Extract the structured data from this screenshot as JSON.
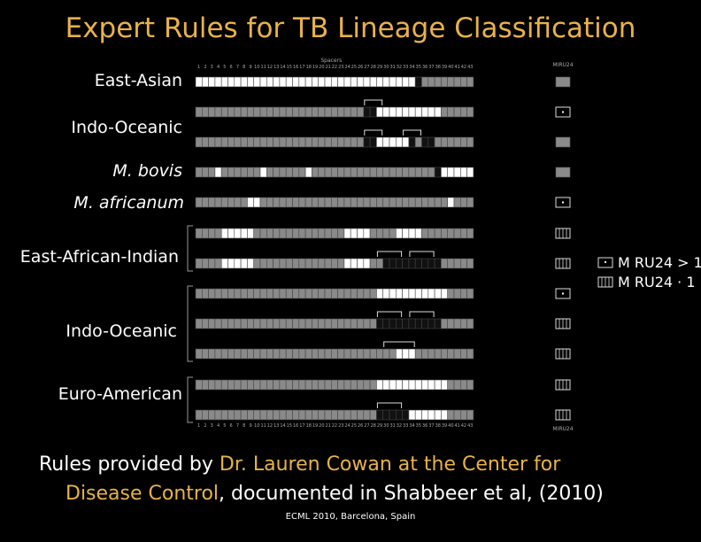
{
  "title": "Expert Rules for TB Lineage Classification",
  "labels": {
    "east_asian": "East-Asian",
    "indo_oceanic_1": "Indo-Oceanic",
    "m_bovis": "M. bovis",
    "m_africanum": "M. africanum",
    "east_african_indian": "East-African-Indian",
    "indo_oceanic_2": "Indo-Oceanic",
    "euro_american": "Euro-American"
  },
  "diagram": {
    "spacers_label": "Spacers",
    "miru_label": "MIRU24",
    "spacer_numbers": [
      "1",
      "2",
      "3",
      "4",
      "5",
      "6",
      "7",
      "8",
      "9",
      "10",
      "11",
      "12",
      "13",
      "14",
      "15",
      "16",
      "17",
      "18",
      "19",
      "20",
      "21",
      "22",
      "23",
      "24",
      "25",
      "26",
      "27",
      "28",
      "29",
      "30",
      "31",
      "32",
      "33",
      "34",
      "35",
      "36",
      "37",
      "38",
      "39",
      "40",
      "41",
      "42",
      "43"
    ],
    "colors": {
      "present": "#ffffff",
      "absent": "#111111",
      "either": "#8a8a8a"
    },
    "rows": [
      {
        "pattern": "WWWWWWWWWWWWWWWWWWWWWWWWWWWWWWWWWWBGGGGGGGG",
        "miru": "gray",
        "brackets": []
      },
      {
        "pattern": "GGGGGGGGGGGGGGGGGGGGGGGGGGBBWWWWWWWWWWGGGGG",
        "miru": "dot",
        "brackets": [
          [
            26,
            28
          ]
        ]
      },
      {
        "pattern": "GGGGGGGGGGGGGGGGGGGGGGGGGGBBWWWWWBGBBGGGGGG",
        "miru": "gray",
        "brackets": [
          [
            26,
            28
          ],
          [
            32,
            34
          ]
        ]
      },
      {
        "pattern": "GGGWGGGGGGWGGGGGGWGGGGGGGGGGGGGGGGGGGBWWWWW",
        "miru": "gray",
        "brackets": []
      },
      {
        "pattern": "GGGGGGGGWWGGGGGGGGGGGGGGGGGGGGGGGGGGGGGWGGG",
        "miru": "dot",
        "brackets": []
      },
      {
        "pattern": "GGGGWWWWWGGGGGGGGGGGGGGWWWWGGGGWWWWGGGGGGGG",
        "miru": "lines",
        "brackets": []
      },
      {
        "pattern": "GGGGWWWWWGGGGGGGGGGGGGGWWWWGGBBBBBBBBBGGGGG",
        "miru": "lines",
        "brackets": [
          [
            28,
            31
          ],
          [
            33,
            36
          ]
        ]
      },
      {
        "pattern": "GGGGGGGGGGGGGGGGGGGGGGGGGGGGWWWWWWWWWWWGGGG",
        "miru": "dot",
        "brackets": []
      },
      {
        "pattern": "GGGGGGGGGGGGGGGGGGGGGGGGGGGGBBBBBBBBBBGGGGG",
        "miru": "lines",
        "brackets": [
          [
            28,
            31
          ],
          [
            33,
            36
          ]
        ]
      },
      {
        "pattern": "GGGGGGGGGGGGGGGGGGGGGGGGGGGGGGGWWWGGGGGGGGG",
        "miru": "lines",
        "brackets": [
          [
            29,
            33
          ]
        ]
      },
      {
        "pattern": "GGGGGGGGGGGGGGGGGGGGGGGGGGGGWWWWWWWWWWWGGGG",
        "miru": "lines",
        "brackets": []
      },
      {
        "pattern": "GGGGGGGGGGGGGGGGGGGGGGGGGGGGBBBBBWWWWWWGGGG",
        "miru": "lines",
        "brackets": [
          [
            28,
            31
          ]
        ]
      }
    ],
    "groups": [
      [
        5,
        6
      ],
      [
        7,
        9
      ],
      [
        10,
        11
      ]
    ]
  },
  "legend": {
    "rule1": "M RU24 > 1",
    "rule2": "M RU24 · 1"
  },
  "footer": {
    "part1": "Rules provided by ",
    "part2": "Dr. Lauren Cowan at the Center for",
    "part3": "Disease Control",
    "part4": ", documented in Shabbeer et al, (2010)"
  },
  "conference": "ECML 2010, Barcelona, Spain"
}
